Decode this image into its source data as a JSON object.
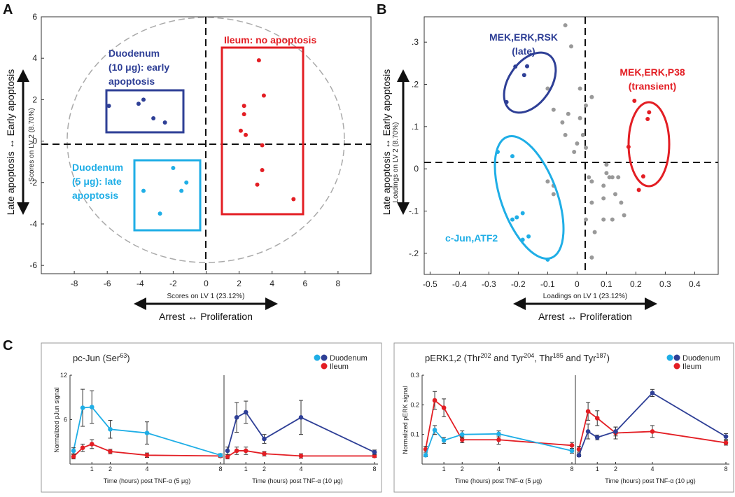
{
  "panel_labels": {
    "a": "A",
    "b": "B",
    "c": "C"
  },
  "colors": {
    "duodenum_10": "#2e3f96",
    "duodenum_5": "#1faee6",
    "ileum": "#e31e24",
    "gray": "#999999",
    "ellipse": "#aaaaaa"
  },
  "chart_data": [
    {
      "id": "A",
      "type": "scatter",
      "xlabel": "Scores on LV 1 (23.12%)",
      "ylabel": "Scores on LV 2 (8.70%)",
      "xlim": [
        -10,
        10
      ],
      "ylim": [
        -6.4,
        6
      ],
      "xticks": [
        -8,
        -6,
        -4,
        -2,
        0,
        2,
        4,
        6,
        8
      ],
      "yticks": [
        -6,
        -4,
        -2,
        0,
        2,
        4,
        6
      ],
      "x_arrow_label": "Arrest ↔ Proliferation",
      "y_arrow_label": "Late apoptosis ↔ Early apoptosis",
      "series": [
        {
          "name": "Duodenum (10 μg): early apoptosis",
          "color": "#2e3f96",
          "points": [
            [
              -5.9,
              1.7
            ],
            [
              -4.1,
              1.8
            ],
            [
              -3.8,
              2.0
            ],
            [
              -3.2,
              1.1
            ],
            [
              -2.5,
              0.9
            ]
          ]
        },
        {
          "name": "Duodenum (5 μg): late apoptosis",
          "color": "#1faee6",
          "points": [
            [
              -2.0,
              -1.3
            ],
            [
              -1.2,
              -2.0
            ],
            [
              -1.5,
              -2.4
            ],
            [
              -3.8,
              -2.4
            ],
            [
              -2.8,
              -3.5
            ]
          ]
        },
        {
          "name": "Ileum: no apoptosis",
          "color": "#e31e24",
          "points": [
            [
              3.2,
              3.9
            ],
            [
              3.5,
              2.2
            ],
            [
              2.3,
              1.7
            ],
            [
              2.3,
              1.3
            ],
            [
              2.1,
              0.5
            ],
            [
              2.4,
              0.3
            ],
            [
              3.4,
              -0.2
            ],
            [
              3.4,
              -1.4
            ],
            [
              3.1,
              -2.1
            ],
            [
              5.3,
              -2.8
            ]
          ]
        }
      ],
      "labels": {
        "duodenum10": [
          "Duodenum",
          "(10 μg): early",
          "apoptosis"
        ],
        "duodenum5": [
          "Duodenum",
          "(5 μg): late",
          "apoptosis"
        ],
        "ileum": "Ileum: no apoptosis"
      }
    },
    {
      "id": "B",
      "type": "scatter",
      "xlabel": "Loadings on LV 1 (23.12%)",
      "ylabel": "Loadings on LV 2 (8.70%)",
      "xlim": [
        -0.52,
        0.48
      ],
      "ylim": [
        -0.25,
        0.36
      ],
      "xticks": [
        "-0.5",
        "-0.4",
        "-0.3",
        "-0.2",
        "-0.1",
        "0",
        "0.1",
        "0.2",
        "0.3",
        "0.4"
      ],
      "yticks": [
        ".3",
        ".2",
        ".1",
        "0",
        "-.1",
        "-.2"
      ],
      "x_arrow_label": "Arrest ↔ Proliferation",
      "y_arrow_label": "Late apoptosis ↔ Early apoptosis",
      "series": [
        {
          "name": "MEK,ERK,RSK (late)",
          "color": "#2e3f96",
          "points": [
            [
              -0.21,
              0.242
            ],
            [
              -0.17,
              0.243
            ],
            [
              -0.18,
              0.222
            ],
            [
              -0.24,
              0.158
            ]
          ]
        },
        {
          "name": "MEK,ERK,P38 (transient)",
          "color": "#e31e24",
          "points": [
            [
              0.195,
              0.161
            ],
            [
              0.245,
              0.134
            ],
            [
              0.24,
              0.118
            ],
            [
              0.175,
              0.052
            ],
            [
              0.225,
              -0.018
            ],
            [
              0.21,
              -0.05
            ]
          ]
        },
        {
          "name": "c-Jun,ATF2",
          "color": "#1faee6",
          "points": [
            [
              -0.27,
              0.04
            ],
            [
              -0.22,
              0.03
            ],
            [
              -0.22,
              -0.12
            ],
            [
              -0.205,
              -0.115
            ],
            [
              -0.185,
              -0.105
            ],
            [
              -0.185,
              -0.168
            ],
            [
              -0.165,
              -0.16
            ],
            [
              -0.1,
              -0.215
            ]
          ]
        },
        {
          "name": "other",
          "color": "#999999",
          "points": [
            [
              -0.04,
              0.34
            ],
            [
              -0.02,
              0.29
            ],
            [
              -0.1,
              0.19
            ],
            [
              -0.08,
              0.14
            ],
            [
              -0.05,
              0.11
            ],
            [
              -0.04,
              0.08
            ],
            [
              -0.03,
              0.13
            ],
            [
              0.0,
              0.06
            ],
            [
              0.02,
              0.08
            ],
            [
              0.01,
              0.12
            ],
            [
              0.01,
              0.19
            ],
            [
              0.05,
              0.17
            ],
            [
              0.03,
              0.15
            ],
            [
              0.03,
              0.05
            ],
            [
              -0.01,
              0.04
            ],
            [
              -0.1,
              -0.03
            ],
            [
              -0.08,
              -0.04
            ],
            [
              -0.08,
              -0.06
            ],
            [
              0.04,
              -0.02
            ],
            [
              0.05,
              -0.03
            ],
            [
              0.1,
              0.01
            ],
            [
              0.1,
              -0.01
            ],
            [
              0.09,
              -0.04
            ],
            [
              0.11,
              -0.02
            ],
            [
              0.12,
              -0.02
            ],
            [
              0.14,
              -0.02
            ],
            [
              0.05,
              -0.08
            ],
            [
              0.09,
              -0.07
            ],
            [
              0.13,
              -0.06
            ],
            [
              0.15,
              -0.08
            ],
            [
              0.16,
              -0.11
            ],
            [
              0.09,
              -0.12
            ],
            [
              0.12,
              -0.12
            ],
            [
              0.03,
              -0.12
            ],
            [
              0.06,
              -0.15
            ],
            [
              0.05,
              -0.21
            ]
          ]
        }
      ],
      "labels": {
        "mek_rsk": [
          "MEK,ERK,RSK",
          "(late)"
        ],
        "mek_p38": [
          "MEK,ERK,P38",
          "(transient)"
        ],
        "cjun": "c-Jun,ATF2"
      }
    },
    {
      "id": "C-left",
      "type": "line",
      "title": "pc-Jun (Ser",
      "title_sup": "63",
      "title_close": ")",
      "ylabel": "Normalized pJun signal",
      "yticks": [
        6,
        12
      ],
      "ylim": [
        0,
        12
      ],
      "xticks": [
        1,
        2,
        4,
        8
      ],
      "xlabel_5": "Time (hours) post TNF-α (5 μg)",
      "xlabel_10": "Time (hours) post TNF-α (10 μg)",
      "legend": [
        "Duodenum",
        "Ileum"
      ],
      "x": [
        0,
        0.5,
        1,
        2,
        4,
        8
      ],
      "sub5": {
        "duodenum": {
          "values": [
            1.8,
            7.6,
            7.7,
            4.7,
            4.2,
            1.2
          ],
          "err": [
            0.4,
            2.5,
            2.2,
            1.2,
            1.5,
            0.2
          ]
        },
        "ileum": {
          "values": [
            1.0,
            2.2,
            2.7,
            1.7,
            1.2,
            1.1
          ],
          "err": [
            0.3,
            0.5,
            0.6,
            0.3,
            0.3,
            0.2
          ]
        }
      },
      "sub10": {
        "duodenum": {
          "values": [
            1.8,
            6.3,
            7.0,
            3.4,
            6.3,
            1.6
          ],
          "err": [
            0.5,
            2.0,
            1.5,
            0.6,
            2.3,
            0.3
          ]
        },
        "ileum": {
          "values": [
            1.0,
            1.8,
            1.8,
            1.4,
            1.1,
            1.1
          ],
          "err": [
            0.3,
            0.5,
            0.5,
            0.3,
            0.3,
            0.2
          ]
        }
      }
    },
    {
      "id": "C-right",
      "type": "line",
      "title_parts": [
        "pERK1,2 (Thr",
        "202",
        " and Tyr",
        "204",
        ", Thr",
        "185",
        " and Tyr",
        "187",
        ")"
      ],
      "ylabel": "Normalized pERK signal",
      "yticks": [
        "0.1",
        "0.2",
        "0.3"
      ],
      "ylim": [
        0,
        0.3
      ],
      "xticks": [
        1,
        2,
        4,
        8
      ],
      "xlabel_5": "Time (hours) post TNF-α (5 μg)",
      "xlabel_10": "Time (hours) post TNF-α (10 μg)",
      "legend": [
        "Duodenum",
        "Ileum"
      ],
      "x": [
        0,
        0.5,
        1,
        2,
        4,
        8
      ],
      "sub5": {
        "duodenum": {
          "values": [
            0.03,
            0.115,
            0.08,
            0.1,
            0.102,
            0.045
          ],
          "err": [
            0.005,
            0.015,
            0.01,
            0.012,
            0.01,
            0.008
          ]
        },
        "ileum": {
          "values": [
            0.05,
            0.215,
            0.19,
            0.082,
            0.082,
            0.063
          ],
          "err": [
            0.01,
            0.03,
            0.03,
            0.01,
            0.015,
            0.01
          ]
        }
      },
      "sub10": {
        "duodenum": {
          "values": [
            0.03,
            0.11,
            0.09,
            0.11,
            0.24,
            0.093
          ],
          "err": [
            0.005,
            0.025,
            0.008,
            0.015,
            0.012,
            0.01
          ]
        },
        "ileum": {
          "values": [
            0.05,
            0.178,
            0.155,
            0.105,
            0.11,
            0.072
          ],
          "err": [
            0.01,
            0.03,
            0.025,
            0.02,
            0.02,
            0.008
          ]
        }
      }
    }
  ]
}
